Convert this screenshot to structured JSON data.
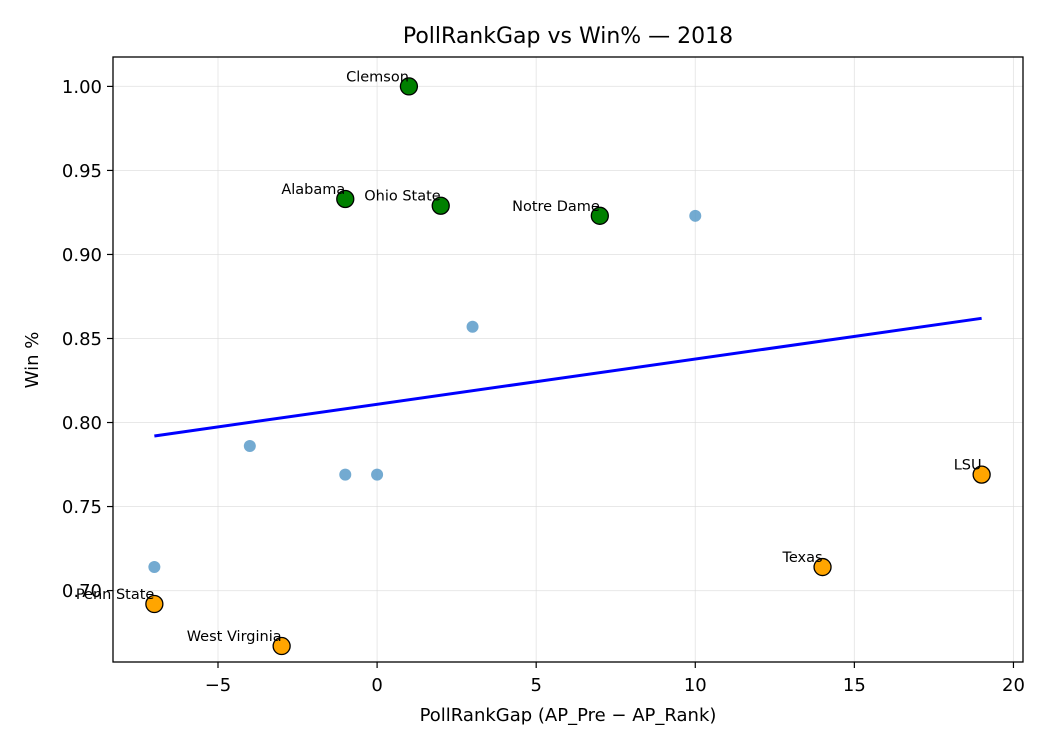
{
  "chart_data": {
    "type": "scatter",
    "title": "PollRankGap vs Win%  — 2018",
    "xlabel": "PollRankGap (AP_Pre − AP_Rank)",
    "ylabel": "Win %",
    "xlim": [
      -8.3,
      20.3
    ],
    "ylim": [
      0.6575,
      1.0175
    ],
    "grid": true,
    "xticks": [
      -5,
      0,
      5,
      10,
      15,
      20
    ],
    "xtick_labels": [
      "−5",
      "0",
      "5",
      "10",
      "15",
      "20"
    ],
    "yticks": [
      0.7,
      0.75,
      0.8,
      0.85,
      0.9,
      0.95,
      1.0
    ],
    "ytick_labels": [
      "0.70",
      "0.75",
      "0.80",
      "0.85",
      "0.90",
      "0.95",
      "1.00"
    ],
    "colors": {
      "other": "#5b9bc9",
      "top": "#008000",
      "bottom": "#ffa500",
      "trend": "#0000ff"
    },
    "series": [
      {
        "group": "other",
        "points": [
          {
            "x": -7,
            "y": 0.714
          },
          {
            "x": -4,
            "y": 0.786
          },
          {
            "x": -1,
            "y": 0.769
          },
          {
            "x": 0,
            "y": 0.769
          },
          {
            "x": 3,
            "y": 0.857
          },
          {
            "x": 10,
            "y": 0.923
          }
        ]
      },
      {
        "group": "top",
        "points": [
          {
            "x": 1,
            "y": 1.0,
            "label": "Clemson"
          },
          {
            "x": -1,
            "y": 0.933,
            "label": "Alabama"
          },
          {
            "x": 2,
            "y": 0.929,
            "label": "Ohio State"
          },
          {
            "x": 7,
            "y": 0.923,
            "label": "Notre Dame"
          }
        ]
      },
      {
        "group": "bottom",
        "points": [
          {
            "x": 19,
            "y": 0.769,
            "label": "LSU"
          },
          {
            "x": 14,
            "y": 0.714,
            "label": "Texas"
          },
          {
            "x": -7,
            "y": 0.692,
            "label": "Penn State"
          },
          {
            "x": -3,
            "y": 0.667,
            "label": "West Virginia"
          }
        ]
      }
    ],
    "trendline": {
      "x": [
        -7,
        19
      ],
      "y": [
        0.792,
        0.862
      ]
    }
  }
}
